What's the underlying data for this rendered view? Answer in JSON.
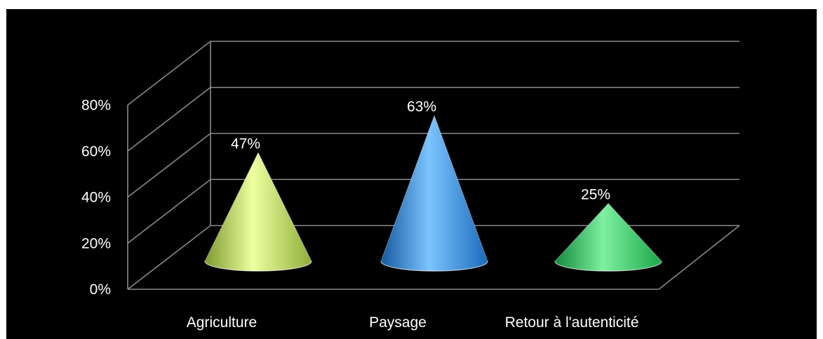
{
  "chart_data": {
    "type": "bar",
    "subtype": "3d-cone",
    "categories": [
      "Agriculture",
      "Paysage",
      "Retour à l'autenticité"
    ],
    "series": [
      {
        "values": [
          47,
          63,
          25
        ],
        "data_labels": [
          "47%",
          "63%",
          "25%"
        ]
      }
    ],
    "value_format": "percent",
    "y_ticks": [
      "0%",
      "20%",
      "40%",
      "60%",
      "80%"
    ],
    "ylim": [
      0,
      80
    ],
    "grid": true,
    "legend": "none",
    "colors": {
      "background": "#000000",
      "gridline": "#8a8a8a",
      "text": "#ffffff",
      "bars": [
        "#c4dc6e",
        "#2f8fe0",
        "#2cc45a"
      ]
    }
  }
}
